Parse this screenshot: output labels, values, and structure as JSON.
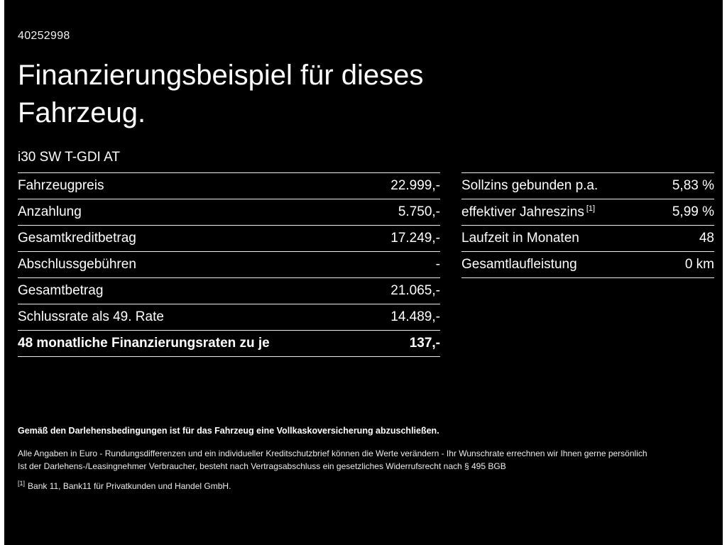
{
  "colors": {
    "background": "#000000",
    "text": "#ffffff",
    "divider": "#ececec",
    "edge_bars": "#ffffff"
  },
  "page": {
    "id": "40252998",
    "title_line1": "Finanzierungsbeispiel für dieses",
    "title_line2": "Fahrzeug.",
    "vehicle_model": "i30 SW T-GDI AT"
  },
  "left_table": {
    "rows": [
      {
        "label": "Fahrzeugpreis",
        "value": "22.999,-"
      },
      {
        "label": "Anzahlung",
        "value": "5.750,-"
      },
      {
        "label": "Gesamtkreditbetrag",
        "value": "17.249,-"
      },
      {
        "label": "Abschlussgebühren",
        "value": "-"
      },
      {
        "label": "Gesamtbetrag",
        "value": "21.065,-"
      },
      {
        "label": "Schlussrate als 49. Rate",
        "value": "14.489,-"
      },
      {
        "label": "48 monatliche Finanzierungsraten zu je",
        "value": "137,-"
      }
    ]
  },
  "right_table": {
    "rows": [
      {
        "label": "Sollzins gebunden p.a.",
        "sup": "",
        "value": "5,83 %"
      },
      {
        "label": "effektiver Jahreszins",
        "sup": "[1]",
        "value": "5,99 %"
      },
      {
        "label": "Laufzeit in Monaten",
        "sup": "",
        "value": "48"
      },
      {
        "label": "Gesamtlaufleistung",
        "sup": "",
        "value": "0 km"
      }
    ]
  },
  "footnotes": {
    "insurance_note": "Gemäß den Darlehensbedingungen ist für das Fahrzeug eine Vollkaskoversicherung abzuschließen.",
    "note1": "Alle Angaben in Euro - Rundungsdifferenzen und ein individueller Kreditschutzbrief können die Werte verändern - Ihr Wunschrate errechnen wir Ihnen gerne persönlich",
    "note2": "Ist der Darlehens-/Leasingnehmer Verbraucher, besteht nach Vertragsabschluss ein gesetzliches Widerrufsrecht nach § 495 BGB",
    "ref_marker": "[1]",
    "ref_text": "Bank 11, Bank11 für Privatkunden und Handel GmbH."
  }
}
